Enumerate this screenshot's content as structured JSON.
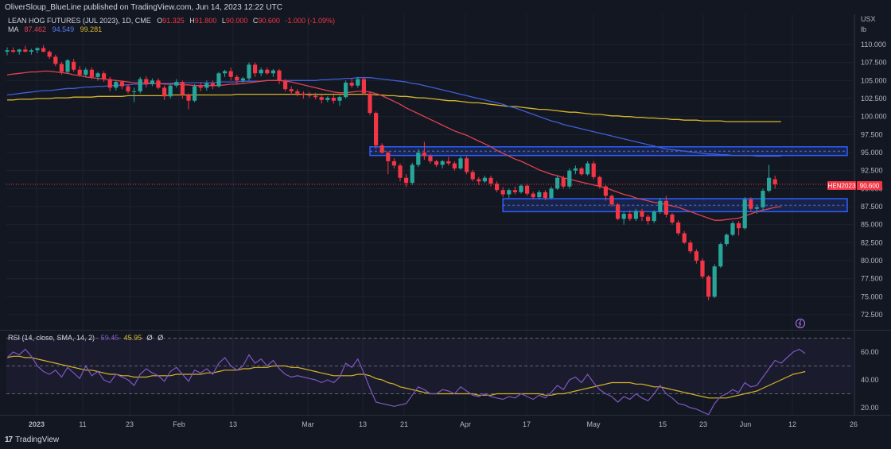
{
  "header": {
    "publisher_line": "OliverSloup_BlueLine published on TradingView.com, Jun 14, 2023 12:22 UTC"
  },
  "legend": {
    "symbol": "LEAN HOG FUTURES (JUL 2023), 1D, CME",
    "o_label": "O",
    "o": "91.325",
    "h_label": "H",
    "h": "91.800",
    "l_label": "L",
    "l": "90.000",
    "c_label": "C",
    "c": "90.600",
    "change": "-1.000 (-1.09%)",
    "ma_label": "MA",
    "ma1": "87.462",
    "ma2": "94.549",
    "ma3": "99.281"
  },
  "rsi_legend": {
    "label": "RSI (14, close, SMA, 14, 2)",
    "v1": "59.45",
    "v2": "45.95",
    "v3": "Ø",
    "v4": "Ø"
  },
  "axis": {
    "unit_top": "USX",
    "unit_bottom": "lb",
    "price_ticks": [
      "110.000",
      "107.500",
      "105.000",
      "102.500",
      "100.000",
      "97.500",
      "95.000",
      "92.500",
      "90.000",
      "87.500",
      "85.000",
      "82.500",
      "80.000",
      "77.500",
      "75.000",
      "72.500"
    ],
    "rsi_ticks": [
      "60.00",
      "40.00",
      "20.00"
    ],
    "time_ticks": [
      "2023",
      "11",
      "23",
      "Feb",
      "13",
      "Mar",
      "13",
      "21",
      "Apr",
      "17",
      "May",
      "15",
      "23",
      "Jun",
      "12",
      "26"
    ]
  },
  "price_label": {
    "ticker": "HEN2023",
    "value": "90.600"
  },
  "brand": {
    "name": "TradingView"
  },
  "colors": {
    "up": "#26a69a",
    "down": "#f23645",
    "ma_fast": "#e0434f",
    "ma_mid": "#3f5fd6",
    "ma_slow": "#d6b52a",
    "rsi_line": "#7e57c2",
    "rsi_ma": "#d6b52a",
    "zone": "#2d5fff"
  },
  "chart_data": {
    "type": "candlestick",
    "title": "LEAN HOG FUTURES (JUL 2023), 1D, CME",
    "ylim": [
      71.5,
      112
    ],
    "zones": [
      [
        94.6,
        95.8
      ],
      [
        86.8,
        88.6
      ]
    ],
    "candles": [
      [
        109.0,
        109.6,
        108.5,
        109.2
      ],
      [
        109.2,
        109.6,
        108.8,
        109.0
      ],
      [
        109.0,
        109.4,
        108.6,
        109.3
      ],
      [
        109.3,
        109.8,
        108.9,
        109.0
      ],
      [
        109.0,
        109.4,
        108.6,
        109.2
      ],
      [
        109.2,
        109.6,
        108.8,
        109.5
      ],
      [
        109.5,
        109.9,
        108.9,
        109.0
      ],
      [
        109.0,
        109.2,
        108.0,
        108.3
      ],
      [
        108.3,
        108.6,
        107.0,
        107.3
      ],
      [
        107.3,
        107.6,
        105.8,
        106.2
      ],
      [
        106.2,
        108.0,
        106.0,
        107.8
      ],
      [
        107.6,
        108.0,
        106.2,
        106.5
      ],
      [
        106.5,
        107.0,
        105.5,
        105.8
      ],
      [
        105.8,
        106.8,
        105.5,
        106.5
      ],
      [
        106.5,
        106.8,
        105.2,
        105.5
      ],
      [
        105.5,
        106.2,
        105.0,
        106.0
      ],
      [
        106.0,
        106.3,
        104.8,
        105.2
      ],
      [
        105.2,
        105.5,
        103.5,
        104.0
      ],
      [
        104.0,
        105.0,
        103.6,
        104.8
      ],
      [
        104.8,
        105.0,
        103.8,
        104.2
      ],
      [
        104.2,
        104.5,
        103.2,
        103.5
      ],
      [
        103.5,
        104.0,
        102.0,
        103.5
      ],
      [
        103.5,
        105.5,
        103.2,
        105.2
      ],
      [
        105.2,
        105.6,
        104.0,
        104.5
      ],
      [
        104.5,
        105.3,
        104.2,
        105.0
      ],
      [
        105.0,
        105.3,
        103.8,
        104.0
      ],
      [
        104.0,
        104.3,
        102.3,
        102.8
      ],
      [
        102.8,
        104.5,
        102.5,
        104.3
      ],
      [
        104.3,
        105.2,
        104.0,
        104.8
      ],
      [
        104.8,
        105.0,
        102.5,
        103.0
      ],
      [
        103.0,
        103.2,
        101.0,
        102.2
      ],
      [
        102.2,
        104.5,
        102.0,
        104.2
      ],
      [
        104.2,
        104.8,
        103.5,
        104.0
      ],
      [
        104.0,
        105.0,
        103.6,
        104.6
      ],
      [
        104.6,
        105.0,
        103.8,
        104.2
      ],
      [
        104.2,
        106.2,
        104.0,
        106.0
      ],
      [
        106.0,
        106.5,
        105.5,
        106.3
      ],
      [
        106.3,
        106.8,
        105.0,
        105.5
      ],
      [
        105.5,
        105.8,
        104.5,
        105.0
      ],
      [
        105.0,
        105.5,
        104.6,
        105.3
      ],
      [
        105.3,
        107.5,
        105.0,
        107.2
      ],
      [
        107.2,
        107.5,
        105.5,
        106.0
      ],
      [
        106.0,
        106.8,
        105.6,
        106.5
      ],
      [
        106.5,
        106.8,
        105.8,
        106.0
      ],
      [
        106.0,
        106.6,
        105.5,
        106.4
      ],
      [
        106.4,
        106.6,
        104.5,
        105.0
      ],
      [
        105.0,
        105.2,
        103.5,
        103.8
      ],
      [
        103.8,
        104.2,
        103.0,
        103.5
      ],
      [
        103.5,
        103.8,
        102.8,
        103.2
      ],
      [
        103.2,
        103.5,
        102.5,
        103.0
      ],
      [
        103.0,
        103.4,
        102.6,
        102.9
      ],
      [
        102.9,
        103.3,
        102.4,
        102.7
      ],
      [
        102.7,
        103.0,
        101.8,
        102.3
      ],
      [
        102.3,
        102.8,
        102.0,
        102.6
      ],
      [
        102.6,
        103.0,
        101.8,
        102.2
      ],
      [
        102.2,
        102.9,
        101.5,
        102.7
      ],
      [
        102.7,
        105.0,
        102.5,
        104.7
      ],
      [
        104.7,
        105.3,
        104.0,
        104.3
      ],
      [
        104.3,
        105.5,
        104.0,
        105.2
      ],
      [
        105.2,
        105.5,
        103.0,
        103.2
      ],
      [
        103.2,
        103.5,
        100.2,
        100.5
      ],
      [
        100.5,
        100.7,
        95.5,
        96.0
      ],
      [
        96.0,
        96.3,
        94.8,
        95.0
      ],
      [
        95.0,
        95.2,
        92.0,
        93.8
      ],
      [
        93.8,
        94.2,
        92.8,
        93.2
      ],
      [
        93.2,
        93.5,
        91.0,
        91.5
      ],
      [
        91.5,
        92.0,
        90.2,
        90.8
      ],
      [
        90.8,
        93.6,
        90.5,
        93.3
      ],
      [
        93.3,
        95.5,
        93.0,
        95.0
      ],
      [
        95.0,
        96.5,
        94.0,
        94.5
      ],
      [
        94.5,
        94.8,
        93.5,
        93.8
      ],
      [
        93.8,
        94.0,
        93.0,
        93.3
      ],
      [
        93.3,
        94.0,
        92.8,
        93.8
      ],
      [
        93.8,
        94.4,
        93.2,
        93.5
      ],
      [
        93.5,
        93.8,
        92.5,
        92.8
      ],
      [
        92.8,
        94.5,
        92.6,
        94.2
      ],
      [
        94.2,
        94.5,
        92.0,
        92.3
      ],
      [
        92.3,
        92.6,
        91.0,
        91.3
      ],
      [
        91.3,
        91.6,
        90.5,
        91.0
      ],
      [
        91.0,
        91.8,
        90.8,
        91.5
      ],
      [
        91.5,
        91.8,
        90.3,
        90.7
      ],
      [
        90.7,
        91.0,
        89.5,
        89.8
      ],
      [
        89.8,
        90.2,
        88.8,
        89.2
      ],
      [
        89.2,
        90.0,
        88.7,
        89.8
      ],
      [
        89.8,
        90.3,
        89.2,
        89.5
      ],
      [
        89.5,
        90.6,
        89.3,
        90.4
      ],
      [
        90.4,
        90.7,
        89.0,
        89.3
      ],
      [
        89.3,
        89.6,
        88.5,
        88.8
      ],
      [
        88.8,
        89.8,
        88.5,
        89.5
      ],
      [
        89.5,
        89.8,
        88.4,
        88.7
      ],
      [
        88.7,
        90.3,
        88.5,
        90.0
      ],
      [
        90.0,
        91.8,
        89.8,
        91.5
      ],
      [
        91.5,
        91.8,
        90.0,
        90.3
      ],
      [
        90.3,
        92.8,
        90.0,
        92.5
      ],
      [
        92.5,
        93.2,
        92.0,
        92.8
      ],
      [
        92.8,
        93.0,
        91.8,
        92.0
      ],
      [
        92.0,
        93.8,
        91.8,
        93.5
      ],
      [
        93.5,
        93.8,
        91.3,
        91.6
      ],
      [
        91.6,
        91.8,
        90.0,
        90.3
      ],
      [
        90.3,
        90.5,
        88.3,
        89.0
      ],
      [
        89.0,
        89.2,
        87.5,
        87.8
      ],
      [
        87.8,
        88.0,
        85.6,
        85.8
      ],
      [
        85.8,
        86.8,
        85.0,
        86.5
      ],
      [
        86.5,
        87.0,
        85.5,
        85.8
      ],
      [
        85.8,
        87.2,
        85.5,
        86.9
      ],
      [
        86.9,
        87.2,
        85.5,
        86.1
      ],
      [
        86.1,
        86.4,
        85.0,
        85.5
      ],
      [
        85.5,
        87.0,
        85.2,
        86.8
      ],
      [
        86.8,
        88.7,
        86.5,
        88.3
      ],
      [
        88.3,
        89.0,
        86.0,
        86.4
      ],
      [
        86.4,
        86.6,
        85.0,
        85.3
      ],
      [
        85.3,
        85.6,
        83.5,
        83.8
      ],
      [
        83.8,
        84.1,
        82.3,
        82.5
      ],
      [
        82.5,
        82.8,
        81.0,
        81.3
      ],
      [
        81.3,
        81.6,
        79.6,
        80.0
      ],
      [
        80.0,
        80.3,
        77.5,
        77.8
      ],
      [
        77.8,
        78.0,
        74.5,
        75.0
      ],
      [
        75.0,
        79.5,
        74.8,
        79.2
      ],
      [
        79.2,
        82.5,
        79.0,
        82.3
      ],
      [
        82.3,
        83.8,
        82.0,
        83.6
      ],
      [
        83.6,
        85.5,
        83.4,
        85.2
      ],
      [
        85.2,
        85.5,
        83.5,
        84.5
      ],
      [
        84.5,
        88.8,
        84.3,
        88.5
      ],
      [
        88.5,
        88.8,
        86.8,
        87.2
      ],
      [
        87.2,
        87.6,
        86.5,
        87.4
      ],
      [
        87.4,
        90.0,
        87.0,
        89.7
      ],
      [
        89.7,
        93.3,
        89.5,
        91.5
      ],
      [
        91.3,
        91.8,
        90.0,
        90.6
      ]
    ],
    "ma_fast": [
      105.8,
      105.9,
      106.0,
      106.1,
      106.2,
      106.2,
      106.3,
      106.3,
      106.2,
      106.1,
      106.0,
      105.8,
      105.7,
      105.5,
      105.4,
      105.3,
      105.2,
      105.1,
      105.0,
      104.9,
      104.8,
      104.7,
      104.7,
      104.7,
      104.6,
      104.6,
      104.5,
      104.5,
      104.5,
      104.4,
      104.4,
      104.3,
      104.3,
      104.3,
      104.3,
      104.3,
      104.4,
      104.5,
      104.5,
      104.6,
      104.7,
      104.8,
      104.9,
      105.0,
      105.0,
      105.0,
      104.9,
      104.8,
      104.6,
      104.4,
      104.2,
      104.0,
      103.8,
      103.6,
      103.4,
      103.3,
      103.3,
      103.4,
      103.5,
      103.5,
      103.4,
      103.2,
      102.9,
      102.5,
      102.1,
      101.7,
      101.2,
      100.8,
      100.4,
      100.0,
      99.6,
      99.2,
      98.8,
      98.4,
      98.0,
      97.7,
      97.4,
      97.0,
      96.6,
      96.2,
      95.8,
      95.3,
      94.9,
      94.5,
      94.1,
      93.8,
      93.4,
      93.0,
      92.6,
      92.3,
      92.0,
      91.8,
      91.5,
      91.3,
      91.1,
      90.9,
      90.7,
      90.5,
      90.3,
      90.1,
      89.8,
      89.5,
      89.2,
      89.0,
      88.7,
      88.5,
      88.3,
      88.1,
      88.0,
      87.8,
      87.6,
      87.4,
      87.1,
      86.8,
      86.5,
      86.2,
      85.9,
      85.6,
      85.6,
      85.7,
      85.8,
      85.9,
      86.2,
      86.5,
      86.8,
      87.0,
      87.2,
      87.4,
      87.5
    ],
    "ma_mid": [
      103.0,
      103.1,
      103.2,
      103.3,
      103.4,
      103.5,
      103.6,
      103.6,
      103.7,
      103.8,
      103.9,
      103.9,
      104.0,
      104.1,
      104.1,
      104.2,
      104.2,
      104.3,
      104.3,
      104.4,
      104.4,
      104.5,
      104.5,
      104.5,
      104.6,
      104.6,
      104.6,
      104.6,
      104.7,
      104.7,
      104.7,
      104.7,
      104.7,
      104.7,
      104.7,
      104.8,
      104.8,
      104.8,
      104.8,
      104.9,
      104.9,
      104.9,
      104.9,
      105.0,
      105.0,
      105.0,
      105.0,
      105.0,
      105.0,
      105.0,
      105.0,
      105.0,
      105.1,
      105.1,
      105.2,
      105.2,
      105.3,
      105.3,
      105.4,
      105.4,
      105.4,
      105.3,
      105.2,
      105.1,
      105.0,
      104.9,
      104.8,
      104.6,
      104.5,
      104.3,
      104.1,
      103.9,
      103.7,
      103.5,
      103.3,
      103.1,
      102.9,
      102.7,
      102.5,
      102.3,
      102.1,
      101.9,
      101.7,
      101.4,
      101.2,
      100.9,
      100.6,
      100.3,
      100.0,
      99.7,
      99.4,
      99.2,
      98.9,
      98.7,
      98.5,
      98.3,
      98.1,
      97.9,
      97.7,
      97.5,
      97.3,
      97.1,
      96.9,
      96.7,
      96.5,
      96.3,
      96.1,
      95.9,
      95.7,
      95.5,
      95.4,
      95.3,
      95.2,
      95.1,
      95.0,
      94.9,
      94.8,
      94.8,
      94.7,
      94.7,
      94.6,
      94.6,
      94.6,
      94.6,
      94.5,
      94.5,
      94.5,
      94.5,
      94.5
    ],
    "ma_slow": [
      102.3,
      102.3,
      102.4,
      102.4,
      102.4,
      102.5,
      102.5,
      102.5,
      102.6,
      102.6,
      102.6,
      102.7,
      102.7,
      102.7,
      102.7,
      102.8,
      102.8,
      102.8,
      102.8,
      102.8,
      102.9,
      102.9,
      102.9,
      102.9,
      102.9,
      102.9,
      102.9,
      103.0,
      103.0,
      103.0,
      103.0,
      103.0,
      103.0,
      103.0,
      103.0,
      103.0,
      103.0,
      103.0,
      103.1,
      103.1,
      103.1,
      103.1,
      103.1,
      103.1,
      103.1,
      103.1,
      103.1,
      103.1,
      103.1,
      103.1,
      103.1,
      103.1,
      103.1,
      103.1,
      103.1,
      103.1,
      103.1,
      103.1,
      103.1,
      103.1,
      103.1,
      103.0,
      103.0,
      102.9,
      102.9,
      102.8,
      102.8,
      102.7,
      102.6,
      102.6,
      102.5,
      102.4,
      102.3,
      102.2,
      102.2,
      102.1,
      102.0,
      101.9,
      101.9,
      101.8,
      101.7,
      101.6,
      101.5,
      101.4,
      101.4,
      101.3,
      101.2,
      101.1,
      101.0,
      101.0,
      100.9,
      100.8,
      100.7,
      100.6,
      100.6,
      100.5,
      100.4,
      100.3,
      100.3,
      100.2,
      100.1,
      100.1,
      100.0,
      100.0,
      99.9,
      99.9,
      99.8,
      99.8,
      99.7,
      99.7,
      99.6,
      99.6,
      99.5,
      99.5,
      99.5,
      99.4,
      99.4,
      99.4,
      99.4,
      99.3,
      99.3,
      99.3,
      99.3,
      99.3,
      99.3,
      99.3,
      99.3,
      99.3,
      99.3
    ],
    "rsi": [
      56,
      60,
      58,
      62,
      57,
      50,
      46,
      44,
      47,
      42,
      49,
      45,
      41,
      50,
      43,
      46,
      40,
      38,
      44,
      42,
      40,
      36,
      44,
      48,
      45,
      43,
      39,
      46,
      49,
      44,
      39,
      47,
      45,
      48,
      44,
      52,
      56,
      50,
      47,
      50,
      58,
      52,
      55,
      50,
      54,
      48,
      44,
      42,
      43,
      42,
      41,
      40,
      38,
      40,
      38,
      42,
      52,
      49,
      55,
      45,
      34,
      24,
      23,
      22,
      21,
      22,
      23,
      29,
      35,
      33,
      30,
      30,
      33,
      32,
      30,
      35,
      32,
      29,
      28,
      30,
      28,
      27,
      26,
      28,
      27,
      30,
      28,
      26,
      29,
      27,
      31,
      36,
      33,
      40,
      42,
      38,
      44,
      38,
      33,
      30,
      28,
      24,
      28,
      26,
      30,
      27,
      25,
      30,
      36,
      30,
      27,
      23,
      22,
      20,
      19,
      17,
      15,
      23,
      28,
      30,
      33,
      31,
      38,
      35,
      36,
      42,
      48,
      54,
      52,
      56,
      60,
      62,
      59
    ],
    "rsi_ma": [
      56,
      57,
      57,
      56,
      56,
      55,
      54,
      53,
      52,
      51,
      50,
      49,
      48,
      47,
      47,
      46,
      45,
      44,
      44,
      43,
      43,
      42,
      42,
      42,
      43,
      43,
      43,
      43,
      44,
      44,
      44,
      44,
      44,
      45,
      45,
      46,
      47,
      47,
      47,
      48,
      48,
      49,
      49,
      49,
      50,
      50,
      50,
      49,
      49,
      48,
      47,
      46,
      45,
      44,
      43,
      43,
      43,
      43,
      44,
      44,
      43,
      41,
      40,
      38,
      37,
      35,
      34,
      33,
      32,
      31,
      30,
      30,
      30,
      30,
      30,
      30,
      30,
      30,
      29,
      29,
      29,
      30,
      30,
      30,
      30,
      30,
      30,
      30,
      30,
      29,
      29,
      30,
      30,
      31,
      32,
      33,
      34,
      35,
      36,
      37,
      38,
      38,
      38,
      38,
      37,
      37,
      36,
      35,
      35,
      34,
      33,
      32,
      31,
      30,
      29,
      28,
      27,
      27,
      27,
      27,
      28,
      29,
      30,
      31,
      32,
      34,
      36,
      38,
      40,
      42,
      44,
      45,
      46
    ]
  }
}
